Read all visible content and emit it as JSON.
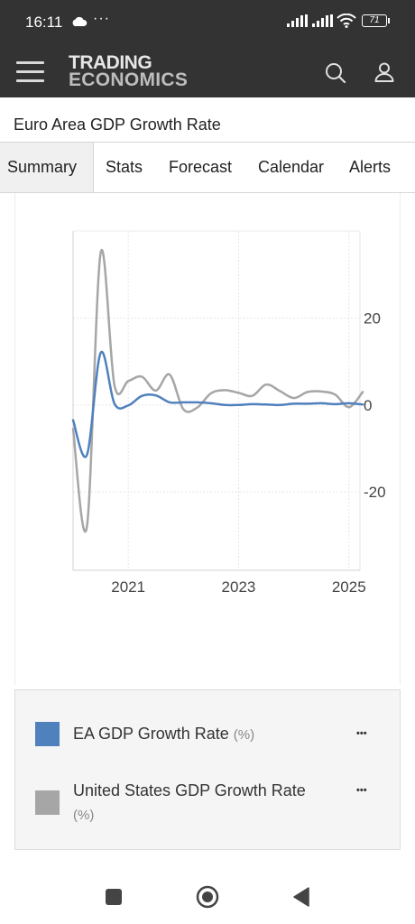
{
  "status": {
    "time": "16:11",
    "battery": "71",
    "icons": [
      "cloud-icon",
      "more-dots-icon",
      "signal-icon",
      "signal-icon",
      "wifi-icon",
      "battery-icon"
    ],
    "dots": "···"
  },
  "header": {
    "logo_line1": "TRADING",
    "logo_line2": "ECONOMICS",
    "icons": [
      "menu-icon",
      "search-icon",
      "user-icon"
    ]
  },
  "page": {
    "title": "Euro Area GDP Growth Rate"
  },
  "tabs": [
    {
      "label": "Summary",
      "active": true
    },
    {
      "label": "Stats",
      "active": false
    },
    {
      "label": "Forecast",
      "active": false
    },
    {
      "label": "Calendar",
      "active": false
    },
    {
      "label": "Alerts",
      "active": false
    }
  ],
  "chart_data": {
    "type": "line",
    "x_range": [
      2020.0,
      2025.2
    ],
    "ylim": [
      -38,
      40
    ],
    "y_ticks": [
      20,
      0,
      -20
    ],
    "y_tick_labels": [
      "20",
      "0",
      "-20"
    ],
    "x_ticks": [
      2021,
      2023,
      2025
    ],
    "x_tick_labels": [
      "2021",
      "2023",
      "2025"
    ],
    "grid": true,
    "legend_position": "bottom",
    "series": [
      {
        "name": "EA GDP Growth Rate",
        "unit": "(%)",
        "color": "#4f81bd",
        "x": [
          2020.0,
          2020.25,
          2020.5,
          2020.75,
          2021.0,
          2021.25,
          2021.5,
          2021.75,
          2022.0,
          2022.25,
          2022.5,
          2022.75,
          2023.0,
          2023.25,
          2023.5,
          2023.75,
          2024.0,
          2024.25,
          2024.5,
          2024.75,
          2025.0,
          2025.25
        ],
        "values": [
          -3.5,
          -11.5,
          12.0,
          0.3,
          -0.1,
          2.1,
          2.2,
          0.6,
          0.6,
          0.6,
          0.4,
          0.0,
          0.0,
          0.2,
          0.1,
          0.0,
          0.3,
          0.3,
          0.4,
          0.2,
          0.4,
          0.1
        ]
      },
      {
        "name": "United States GDP Growth Rate",
        "unit": "(%)",
        "color": "#a6a6a6",
        "x": [
          2020.0,
          2020.25,
          2020.5,
          2020.75,
          2021.0,
          2021.25,
          2021.5,
          2021.75,
          2022.0,
          2022.25,
          2022.5,
          2022.75,
          2023.0,
          2023.25,
          2023.5,
          2023.75,
          2024.0,
          2024.25,
          2024.5,
          2024.75,
          2025.0,
          2025.25
        ],
        "values": [
          -5.5,
          -28.0,
          35.0,
          4.5,
          5.5,
          6.5,
          3.3,
          7.0,
          -1.0,
          -0.6,
          2.7,
          3.4,
          2.8,
          2.1,
          4.7,
          3.2,
          1.6,
          3.0,
          3.1,
          2.4,
          -0.5,
          3.0
        ]
      }
    ]
  },
  "legend": {
    "items": [
      {
        "label": "EA GDP Growth Rate",
        "unit": "(%)",
        "color": "#4f81bd",
        "more": "•••"
      },
      {
        "label": "United States GDP Growth Rate",
        "unit": "(%)",
        "color": "#a6a6a6",
        "more": "•••"
      }
    ]
  },
  "navbar": {
    "icons": [
      "recents-square-icon",
      "home-circle-icon",
      "back-triangle-icon"
    ]
  }
}
